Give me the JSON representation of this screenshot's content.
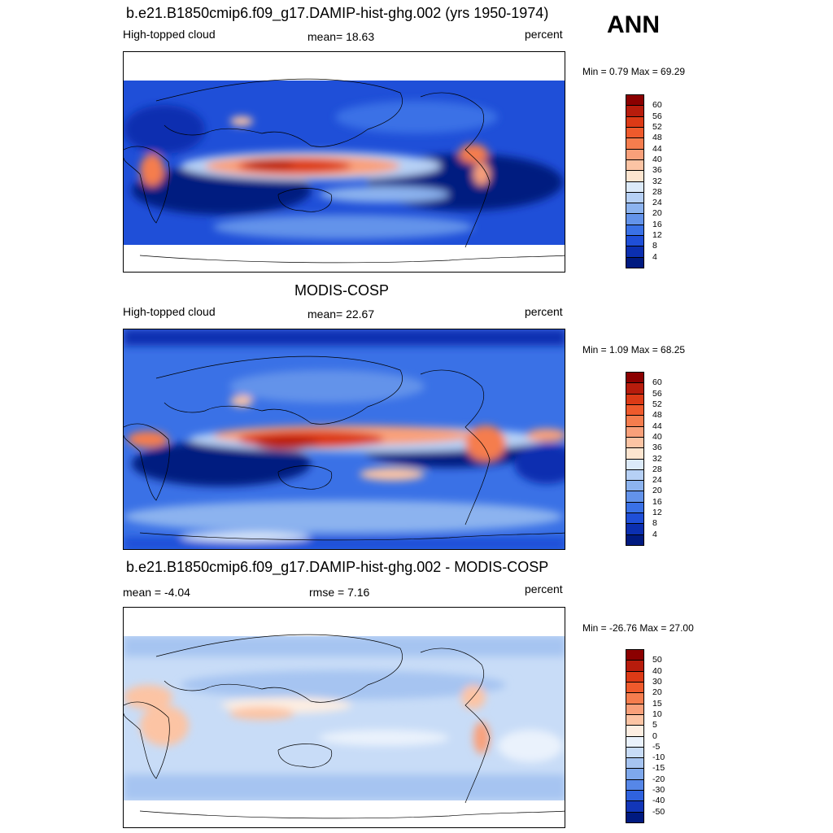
{
  "season": "ANN",
  "panels": [
    {
      "id": "test",
      "title": "b.e21.B1850cmip6.f09_g17.DAMIP-hist-ghg.002 (yrs 1950-1974)",
      "left_label": "High-topped cloud",
      "center_label": "mean=  18.63",
      "right_label": "percent",
      "minmax": "Min =   0.79 Max =  69.29",
      "colorbar_labels": [
        "60",
        "56",
        "52",
        "48",
        "44",
        "40",
        "36",
        "32",
        "28",
        "24",
        "20",
        "16",
        "12",
        "8",
        "4"
      ]
    },
    {
      "id": "obs",
      "title": "MODIS-COSP",
      "left_label": "High-topped cloud",
      "center_label": "mean=  22.67",
      "right_label": "percent",
      "minmax": "Min =   1.09 Max =  68.25",
      "colorbar_labels": [
        "60",
        "56",
        "52",
        "48",
        "44",
        "40",
        "36",
        "32",
        "28",
        "24",
        "20",
        "16",
        "12",
        "8",
        "4"
      ]
    },
    {
      "id": "diff",
      "title": "b.e21.B1850cmip6.f09_g17.DAMIP-hist-ghg.002 - MODIS-COSP",
      "left_label": "mean =  -4.04",
      "center_label": "rmse =   7.16",
      "right_label": "percent",
      "minmax": "Min = -26.76 Max =  27.00",
      "colorbar_labels": [
        "50",
        "40",
        "30",
        "20",
        "15",
        "10",
        "5",
        "0",
        "-5",
        "-10",
        "-15",
        "-20",
        "-30",
        "-40",
        "-50"
      ]
    }
  ],
  "colors": {
    "seq": [
      "#8b0000",
      "#b71c0c",
      "#dc3a16",
      "#ef5a2c",
      "#f57d4e",
      "#f9a07a",
      "#fcc4a4",
      "#fde5d0",
      "#dceaf9",
      "#b6d0f5",
      "#8cb3ef",
      "#6393ea",
      "#3a71e6",
      "#1f4fd8",
      "#0b2fb0",
      "#001a80"
    ],
    "div": [
      "#8b0000",
      "#b71c0c",
      "#dc3a16",
      "#ef5a2c",
      "#f57d4e",
      "#f9a07a",
      "#fcc4a4",
      "#fdeee2",
      "#eaf2fc",
      "#c8dcf7",
      "#a6c4f1",
      "#7ea8ec",
      "#5687e8",
      "#2f62de",
      "#1236b8",
      "#001a80"
    ]
  }
}
